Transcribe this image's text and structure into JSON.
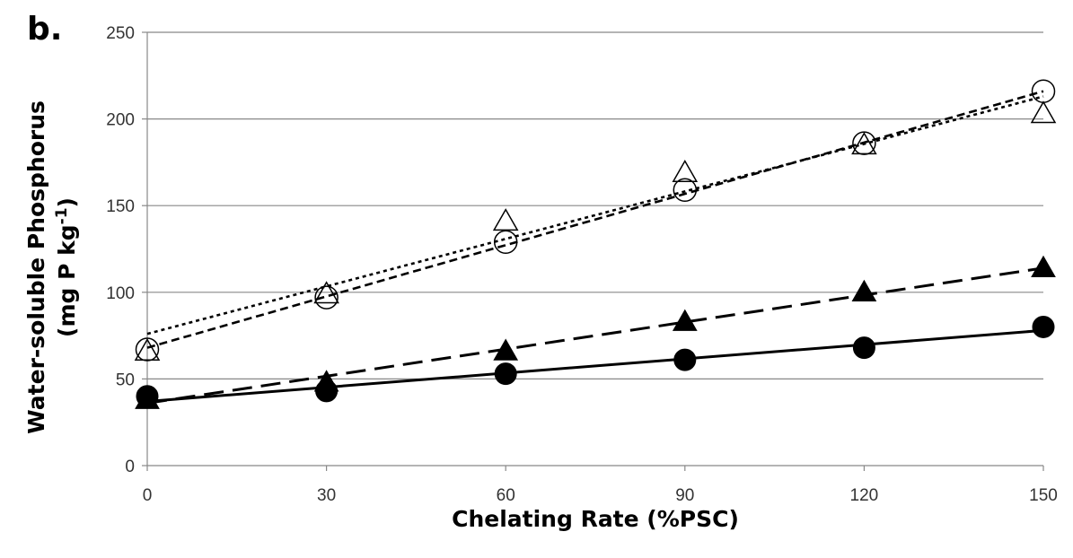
{
  "panel_label": "b.",
  "chart_data": {
    "type": "scatter",
    "xlabel": "Chelating Rate (%PSC)",
    "ylabel_line1": "Water-soluble Phosphorus",
    "ylabel_line2_prefix": "(mg P kg",
    "ylabel_superscript": "-1",
    "ylabel_line2_suffix": ")",
    "x_ticks": [
      0,
      30,
      60,
      90,
      120,
      150
    ],
    "y_ticks": [
      0,
      50,
      100,
      150,
      200,
      250
    ],
    "xlim": [
      0,
      150
    ],
    "ylim": [
      0,
      250
    ],
    "grid": "horizontal",
    "series": [
      {
        "marker": "circle-filled",
        "color": "#000000",
        "x": [
          0,
          30,
          60,
          90,
          120,
          150
        ],
        "y": [
          40,
          43,
          53,
          61,
          68,
          80
        ],
        "trendline": {
          "style": "solid",
          "y_start": 37,
          "y_end": 78
        }
      },
      {
        "marker": "triangle-filled",
        "color": "#000000",
        "x": [
          0,
          30,
          60,
          90,
          120,
          150
        ],
        "y": [
          38,
          48,
          66,
          83,
          100,
          114
        ],
        "trendline": {
          "style": "long-dash",
          "y_start": 36,
          "y_end": 114
        }
      },
      {
        "marker": "circle-open",
        "color": "#000000",
        "x": [
          0,
          30,
          60,
          90,
          120,
          150
        ],
        "y": [
          67,
          97,
          129,
          159,
          186,
          216
        ],
        "trendline": {
          "style": "short-dash",
          "y_start": 68,
          "y_end": 216
        }
      },
      {
        "marker": "triangle-open",
        "color": "#000000",
        "x": [
          0,
          30,
          60,
          90,
          120,
          150
        ],
        "y": [
          66,
          99,
          141,
          169,
          185,
          203
        ],
        "trendline": {
          "style": "dotted",
          "y_start": 76,
          "y_end": 213
        }
      }
    ]
  }
}
